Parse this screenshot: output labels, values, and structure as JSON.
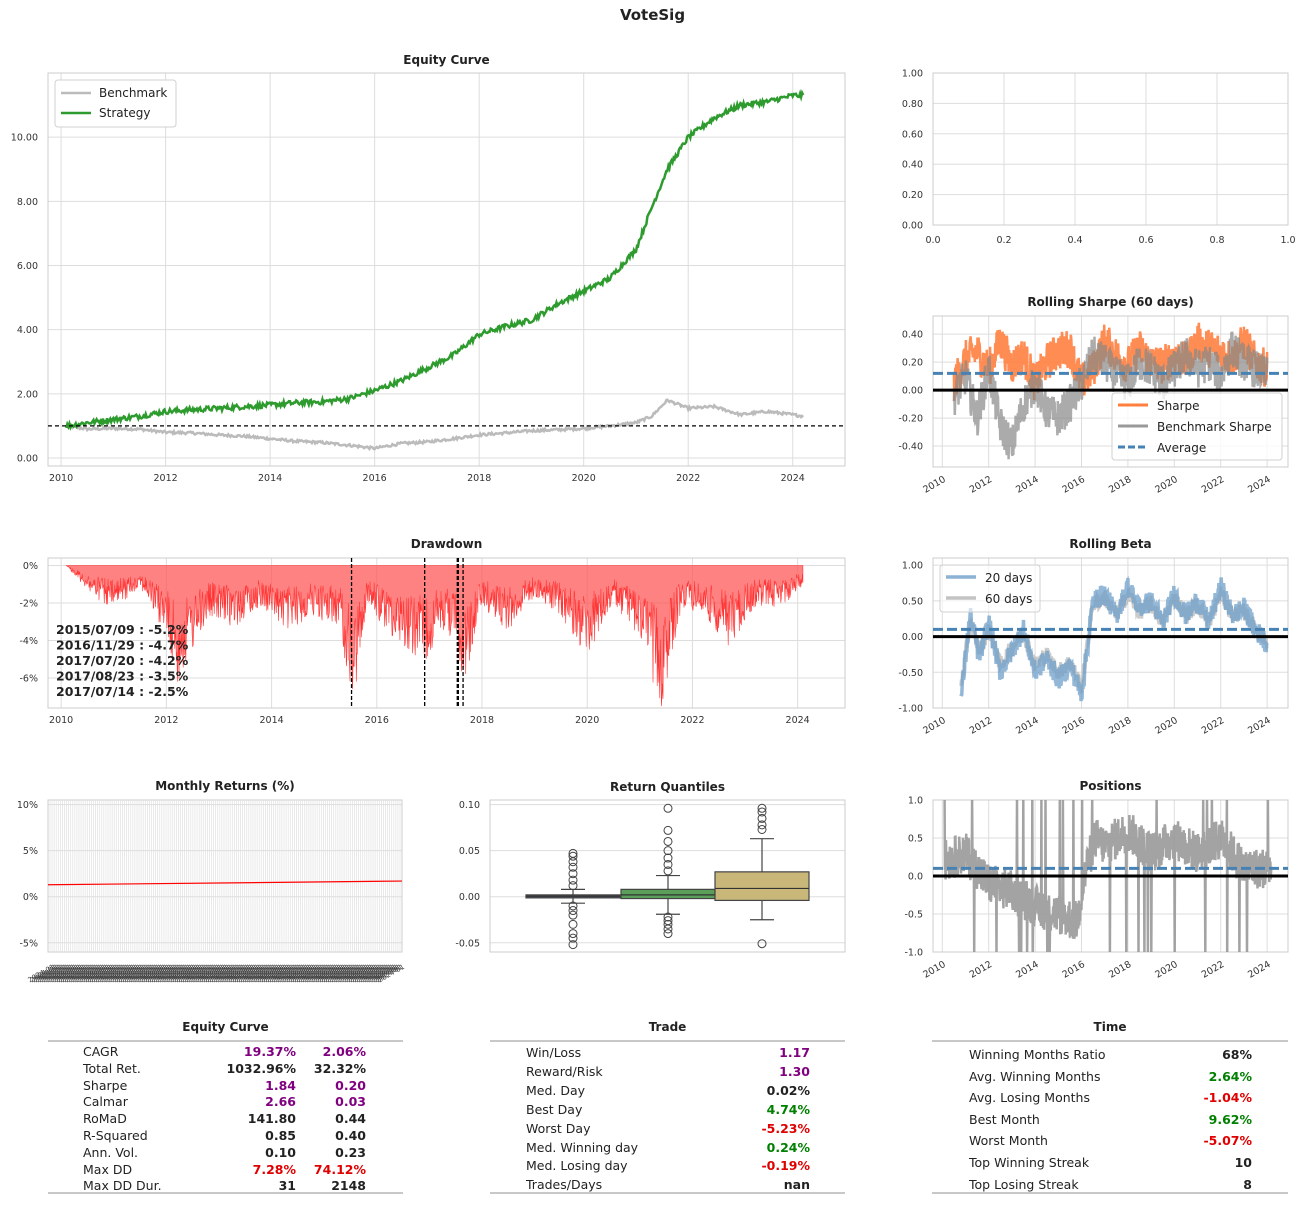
{
  "title": "VoteSig",
  "colors": {
    "strategy": "#2e9b2e",
    "benchmark": "#bbbbbb",
    "drawdown": "#ff4d4d",
    "sharpe": "#ff7f3f",
    "average": "#4682b4",
    "beta20": "#6f9fc9",
    "beta60": "#a9a9a9",
    "positions": "#999999",
    "purple": "#800080",
    "red": "#e00000",
    "green": "#008000"
  },
  "chart_data": [
    {
      "id": "equity",
      "type": "line",
      "title": "Equity Curve",
      "x": [
        2010.1,
        2010.5,
        2011,
        2011.5,
        2012,
        2012.5,
        2013,
        2013.5,
        2014,
        2014.5,
        2015,
        2015.5,
        2016,
        2016.5,
        2017,
        2017.5,
        2018,
        2018.5,
        2019,
        2019.5,
        2020,
        2020.5,
        2021,
        2021.3,
        2021.6,
        2022,
        2022.5,
        2023,
        2023.5,
        2024,
        2024.2
      ],
      "series": [
        {
          "name": "Benchmark",
          "values": [
            1.0,
            0.9,
            0.92,
            0.9,
            0.8,
            0.78,
            0.72,
            0.68,
            0.6,
            0.52,
            0.48,
            0.4,
            0.3,
            0.45,
            0.5,
            0.6,
            0.72,
            0.78,
            0.85,
            0.88,
            0.92,
            1.0,
            1.1,
            1.3,
            1.8,
            1.55,
            1.6,
            1.35,
            1.45,
            1.35,
            1.3
          ]
        },
        {
          "name": "Strategy",
          "values": [
            1.0,
            1.1,
            1.2,
            1.3,
            1.45,
            1.5,
            1.55,
            1.6,
            1.65,
            1.72,
            1.75,
            1.85,
            2.1,
            2.4,
            2.8,
            3.2,
            3.85,
            4.1,
            4.3,
            4.8,
            5.2,
            5.6,
            6.5,
            7.8,
            9.0,
            10.0,
            10.6,
            11.0,
            11.1,
            11.3,
            11.3
          ]
        }
      ],
      "xlim": [
        2009.75,
        2025.0
      ],
      "ylim": [
        -0.25,
        12.0
      ],
      "xticks": [
        "2010",
        "2012",
        "2014",
        "2016",
        "2018",
        "2020",
        "2022",
        "2024"
      ],
      "yticks": [
        "0.00",
        "2.00",
        "4.00",
        "6.00",
        "8.00",
        "10.00"
      ],
      "reference_line": 1.0,
      "legend": "top-left",
      "grid": true
    },
    {
      "id": "empty",
      "type": "line",
      "xlim": [
        0,
        1
      ],
      "ylim": [
        0,
        1
      ],
      "xticks": [
        "0.0",
        "0.2",
        "0.4",
        "0.6",
        "0.8",
        "1.0"
      ],
      "yticks": [
        "0.00",
        "0.20",
        "0.40",
        "0.60",
        "0.80",
        "1.00"
      ],
      "grid": true
    },
    {
      "id": "sharpe",
      "type": "line",
      "title": "Rolling Sharpe (60 days)",
      "series": [
        {
          "name": "Sharpe",
          "x": [
            2010.5,
            2011,
            2011.5,
            2012,
            2012.5,
            2013,
            2013.5,
            2014,
            2014.5,
            2015,
            2015.5,
            2016,
            2016.5,
            2017,
            2017.5,
            2018,
            2018.5,
            2019,
            2019.5,
            2020,
            2020.5,
            2021,
            2021.5,
            2022,
            2022.5,
            2023,
            2023.5,
            2024
          ],
          "values": [
            0.05,
            0.22,
            0.28,
            0.15,
            0.35,
            0.18,
            0.25,
            0.05,
            0.2,
            0.28,
            0.3,
            0.05,
            0.15,
            0.35,
            0.25,
            0.18,
            0.3,
            0.2,
            0.18,
            0.25,
            0.2,
            0.35,
            0.3,
            0.28,
            0.22,
            0.35,
            0.2,
            0.15
          ]
        },
        {
          "name": "Benchmark Sharpe",
          "x": [
            2010.5,
            2011,
            2011.5,
            2012,
            2012.5,
            2013,
            2013.5,
            2014,
            2014.5,
            2015,
            2015.5,
            2016,
            2016.5,
            2017,
            2017.5,
            2018,
            2018.5,
            2019,
            2019.5,
            2020,
            2020.5,
            2021,
            2021.5,
            2022,
            2022.5,
            2023,
            2023.5,
            2024
          ],
          "values": [
            -0.05,
            0.1,
            -0.2,
            0.15,
            -0.25,
            -0.4,
            -0.1,
            0.05,
            -0.15,
            -0.2,
            -0.1,
            0.05,
            0.25,
            0.2,
            0.1,
            0.05,
            0.2,
            0.15,
            0.05,
            0.15,
            0.25,
            0.15,
            0.2,
            0.1,
            0.3,
            0.2,
            0.15,
            0.1
          ]
        },
        {
          "name": "Average",
          "x": [
            2009.6,
            2024.9
          ],
          "values": [
            0.12,
            0.12
          ]
        }
      ],
      "xlim": [
        2009.6,
        2024.9
      ],
      "ylim": [
        -0.55,
        0.53
      ],
      "xticks": [
        "2010",
        "2012",
        "2014",
        "2016",
        "2018",
        "2020",
        "2022",
        "2024"
      ],
      "yticks": [
        "-0.40",
        "-0.20",
        "0.00",
        "0.20",
        "0.40"
      ],
      "reference_line": 0.0,
      "legend": "bottom-right",
      "grid": true
    },
    {
      "id": "drawdown",
      "type": "area",
      "title": "Drawdown",
      "x": [
        2010.1,
        2010.6,
        2011,
        2011.5,
        2012,
        2012.2,
        2012.8,
        2013.3,
        2013.8,
        2014.3,
        2014.8,
        2015.3,
        2015.55,
        2015.8,
        2016.3,
        2016.9,
        2017.3,
        2017.55,
        2017.65,
        2018,
        2018.5,
        2019,
        2019.5,
        2020,
        2020.5,
        2021,
        2021.4,
        2021.8,
        2022.2,
        2022.7,
        2023.2,
        2023.7,
        2024.1
      ],
      "values": [
        0,
        -1.5,
        -2.2,
        -1.0,
        -3.5,
        -5.8,
        -2.5,
        -3.0,
        -2.0,
        -3.2,
        -2.5,
        -3.0,
        -7.2,
        -2.0,
        -3.5,
        -4.7,
        -3.0,
        -4.2,
        -6.0,
        -2.0,
        -3.2,
        -1.5,
        -2.5,
        -4.5,
        -2.0,
        -3.5,
        -7.0,
        -2.0,
        -2.5,
        -4.0,
        -2.0,
        -2.0,
        -1.0
      ],
      "xlim": [
        2009.75,
        2024.9
      ],
      "ylim": [
        -7.6,
        0.4
      ],
      "xticks": [
        "2010",
        "2012",
        "2014",
        "2016",
        "2018",
        "2020",
        "2022",
        "2024"
      ],
      "yticks": [
        "0%",
        "-2%",
        "-4%",
        "-6%"
      ],
      "marked_dates": [
        2015.52,
        2016.91,
        2017.55,
        2017.64,
        2017.53
      ],
      "annotations": [
        "2015/07/09 : -5.2%",
        "2016/11/29 : -4.7%",
        "2017/07/20 : -4.2%",
        "2017/08/23 : -3.5%",
        "2017/07/14 : -2.5%"
      ],
      "grid": true
    },
    {
      "id": "beta",
      "type": "line",
      "title": "Rolling Beta",
      "series": [
        {
          "name": "20 days",
          "x": [
            2010.8,
            2011.2,
            2011.6,
            2012,
            2012.5,
            2013,
            2013.5,
            2014,
            2014.5,
            2015,
            2015.5,
            2016,
            2016.5,
            2017,
            2017.5,
            2018,
            2018.5,
            2019,
            2019.5,
            2020,
            2020.5,
            2021,
            2021.5,
            2022,
            2022.5,
            2023,
            2023.5,
            2024
          ],
          "values": [
            -0.9,
            0.3,
            -0.3,
            0.2,
            -0.5,
            -0.2,
            0.1,
            -0.5,
            -0.3,
            -0.6,
            -0.4,
            -0.8,
            0.5,
            0.6,
            0.3,
            0.7,
            0.4,
            0.5,
            0.2,
            0.6,
            0.3,
            0.5,
            0.2,
            0.7,
            0.3,
            0.4,
            0.1,
            -0.1
          ]
        },
        {
          "name": "60 days",
          "x": [
            2010.8,
            2011.2,
            2011.6,
            2012,
            2012.5,
            2013,
            2013.5,
            2014,
            2014.5,
            2015,
            2015.5,
            2016,
            2016.5,
            2017,
            2017.5,
            2018,
            2018.5,
            2019,
            2019.5,
            2020,
            2020.5,
            2021,
            2021.5,
            2022,
            2022.5,
            2023,
            2023.5,
            2024
          ],
          "values": [
            -0.7,
            0.2,
            -0.2,
            0.1,
            -0.4,
            -0.15,
            0.05,
            -0.4,
            -0.25,
            -0.5,
            -0.35,
            -0.7,
            0.45,
            0.55,
            0.3,
            0.6,
            0.35,
            0.45,
            0.2,
            0.55,
            0.3,
            0.45,
            0.2,
            0.6,
            0.3,
            0.35,
            0.1,
            -0.05
          ]
        },
        {
          "name": "",
          "x": [
            2009.6,
            2024.9
          ],
          "values": [
            0.1,
            0.1
          ]
        }
      ],
      "xlim": [
        2009.6,
        2024.9
      ],
      "ylim": [
        -1.0,
        1.1
      ],
      "xticks": [
        "2010",
        "2012",
        "2014",
        "2016",
        "2018",
        "2020",
        "2022",
        "2024"
      ],
      "yticks": [
        "1.00",
        "0.50",
        "0.00",
        "-0.50",
        "-1.00"
      ],
      "reference_line": 0.0,
      "legend": "top-left",
      "grid": true
    },
    {
      "id": "monthly",
      "type": "bar",
      "title": "Monthly Returns (%)",
      "ylim": [
        -6,
        10.5
      ],
      "yticks": [
        "10%",
        "5%",
        "0%",
        "-5%"
      ],
      "trend": [
        1.3,
        1.7
      ],
      "grid": true
    },
    {
      "id": "quantiles",
      "type": "box",
      "title": "Return Quantiles",
      "boxes": [
        {
          "color": "#4c566a",
          "q1": -0.001,
          "median": 0.0005,
          "q3": 0.002,
          "whisker_low": -0.007,
          "whisker_high": 0.008,
          "outliers_low": [
            -0.01,
            -0.015,
            -0.02,
            -0.03,
            -0.04,
            -0.045,
            -0.052
          ],
          "outliers_high": [
            0.012,
            0.018,
            0.025,
            0.032,
            0.038,
            0.044,
            0.047
          ]
        },
        {
          "color": "#5a9e5a",
          "q1": -0.002,
          "median": 0.002,
          "q3": 0.008,
          "whisker_low": -0.019,
          "whisker_high": 0.023,
          "outliers_low": [
            -0.022,
            -0.026,
            -0.03,
            -0.035,
            -0.04
          ],
          "outliers_high": [
            0.028,
            0.035,
            0.042,
            0.05,
            0.06,
            0.072,
            0.096
          ]
        },
        {
          "color": "#c9b77a",
          "q1": -0.004,
          "median": 0.009,
          "q3": 0.027,
          "whisker_low": -0.025,
          "whisker_high": 0.063,
          "outliers_low": [
            -0.051
          ],
          "outliers_high": [
            0.073,
            0.078,
            0.085,
            0.092,
            0.096
          ]
        }
      ],
      "ylim": [
        -0.06,
        0.105
      ],
      "yticks": [
        "0.10",
        "0.05",
        "0.00",
        "-0.05"
      ],
      "grid": true
    },
    {
      "id": "positions",
      "type": "line",
      "title": "Positions",
      "xlim": [
        2009.6,
        2024.9
      ],
      "ylim": [
        -1.0,
        1.0
      ],
      "xticks": [
        "2010",
        "2012",
        "2014",
        "2016",
        "2018",
        "2020",
        "2022",
        "2024"
      ],
      "yticks": [
        "1.0",
        "0.5",
        "0.0",
        "-0.5",
        "-1.0"
      ],
      "average": 0.1,
      "reference_line": 0.0,
      "grid": true
    }
  ],
  "tables": {
    "equity": {
      "title": "Equity Curve",
      "rows": [
        {
          "label": "CAGR",
          "v1": "19.37%",
          "c1": "purple",
          "v2": "2.06%",
          "c2": "purple"
        },
        {
          "label": "Total Ret.",
          "v1": "1032.96%",
          "c1": "dark",
          "v2": "32.32%",
          "c2": "dark"
        },
        {
          "label": "Sharpe",
          "v1": "1.84",
          "c1": "purple",
          "v2": "0.20",
          "c2": "purple"
        },
        {
          "label": "Calmar",
          "v1": "2.66",
          "c1": "purple",
          "v2": "0.03",
          "c2": "purple"
        },
        {
          "label": "RoMaD",
          "v1": "141.80",
          "c1": "dark",
          "v2": "0.44",
          "c2": "dark"
        },
        {
          "label": "R-Squared",
          "v1": "0.85",
          "c1": "dark",
          "v2": "0.40",
          "c2": "dark"
        },
        {
          "label": "Ann. Vol.",
          "v1": "0.10",
          "c1": "dark",
          "v2": "0.23",
          "c2": "dark"
        },
        {
          "label": "Max DD",
          "v1": "7.28%",
          "c1": "red",
          "v2": "74.12%",
          "c2": "red"
        },
        {
          "label": "Max DD Dur.",
          "v1": "31",
          "c1": "dark",
          "v2": "2148",
          "c2": "dark"
        }
      ]
    },
    "trade": {
      "title": "Trade",
      "rows": [
        {
          "label": "Win/Loss",
          "v": "1.17",
          "c": "purple"
        },
        {
          "label": "Reward/Risk",
          "v": "1.30",
          "c": "purple"
        },
        {
          "label": "Med. Day",
          "v": "0.02%",
          "c": "dark"
        },
        {
          "label": "Best Day",
          "v": "4.74%",
          "c": "green"
        },
        {
          "label": "Worst Day",
          "v": "-5.23%",
          "c": "red"
        },
        {
          "label": "Med. Winning day",
          "v": "0.24%",
          "c": "green"
        },
        {
          "label": "Med. Losing day",
          "v": "-0.19%",
          "c": "red"
        },
        {
          "label": "Trades/Days",
          "v": "nan",
          "c": "dark"
        }
      ]
    },
    "time": {
      "title": "Time",
      "rows": [
        {
          "label": "Winning Months Ratio",
          "v": "68%",
          "c": "dark"
        },
        {
          "label": "Avg. Winning Months",
          "v": "2.64%",
          "c": "green"
        },
        {
          "label": "Avg. Losing Months",
          "v": "-1.04%",
          "c": "red"
        },
        {
          "label": "Best Month",
          "v": "9.62%",
          "c": "green"
        },
        {
          "label": "Worst Month",
          "v": "-5.07%",
          "c": "red"
        },
        {
          "label": "Top Winning Streak",
          "v": "10",
          "c": "dark"
        },
        {
          "label": "Top Losing Streak",
          "v": "8",
          "c": "dark"
        }
      ]
    }
  }
}
